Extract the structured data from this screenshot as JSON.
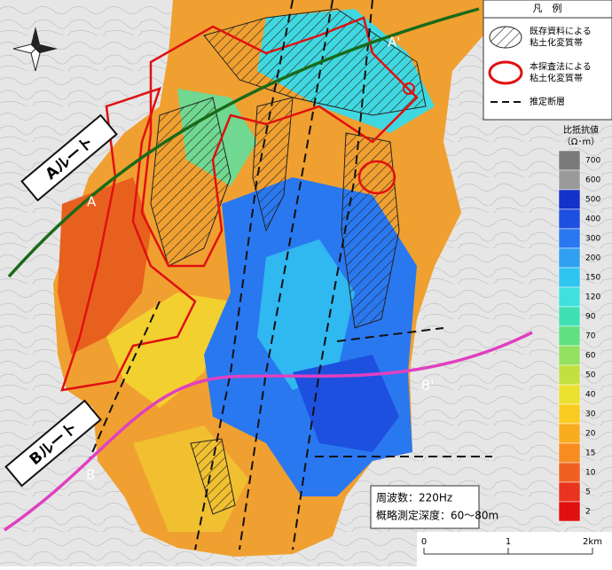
{
  "legend": {
    "title": "凡　例",
    "items": [
      {
        "lines": [
          "既存資料による",
          "粘土化変質帯"
        ]
      },
      {
        "lines": [
          "本探査法による",
          "粘土化変質帯"
        ]
      },
      {
        "lines": [
          "推定断層"
        ]
      }
    ]
  },
  "routes": {
    "a": "Aルート",
    "b": "Bルート"
  },
  "points": {
    "a": "A",
    "a_prime": "A'",
    "b": "B",
    "b_prime": "B'"
  },
  "colorbar": {
    "title": "比抵抗値",
    "unit": "（Ω･m）",
    "levels": [
      {
        "value": 700,
        "color": "#7a7a7a"
      },
      {
        "value": 600,
        "color": "#9a9a9a"
      },
      {
        "value": 500,
        "color": "#1432c8"
      },
      {
        "value": 400,
        "color": "#1e50e0"
      },
      {
        "value": 300,
        "color": "#2a78f0"
      },
      {
        "value": 200,
        "color": "#30a0f0"
      },
      {
        "value": 150,
        "color": "#30c4f0"
      },
      {
        "value": 120,
        "color": "#40e0e0"
      },
      {
        "value": 90,
        "color": "#40e0b4"
      },
      {
        "value": 70,
        "color": "#60e080"
      },
      {
        "value": 60,
        "color": "#94e060"
      },
      {
        "value": 50,
        "color": "#c4e040"
      },
      {
        "value": 40,
        "color": "#ece030"
      },
      {
        "value": 30,
        "color": "#f8cc20"
      },
      {
        "value": 20,
        "color": "#f8ac20"
      },
      {
        "value": 15,
        "color": "#f88c20"
      },
      {
        "value": 10,
        "color": "#f06020"
      },
      {
        "value": 5,
        "color": "#e83420"
      },
      {
        "value": 2,
        "color": "#e01010"
      }
    ]
  },
  "info": {
    "frequency": "周波数：220Hz",
    "depth": "概略測定深度：60～80m"
  },
  "scale": {
    "labels": [
      "0",
      "1",
      "2km"
    ]
  }
}
